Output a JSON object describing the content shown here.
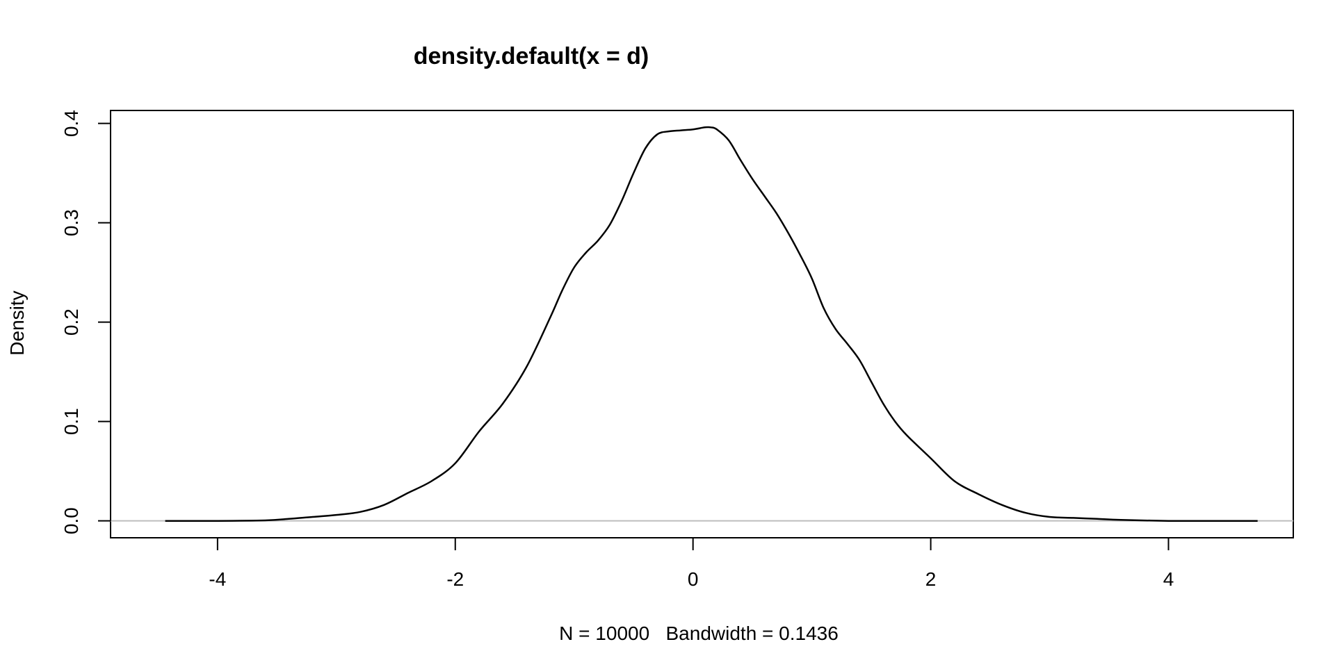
{
  "chart_data": {
    "type": "line",
    "title": "density.default(x = d)",
    "xlabel": "N = 10000   Bandwidth = 0.1436",
    "ylabel": "Density",
    "xlim": [
      -4.9,
      5.05
    ],
    "ylim": [
      -0.017,
      0.413
    ],
    "x_ticks": [
      {
        "value": -4,
        "label": "-4"
      },
      {
        "value": -2,
        "label": "-2"
      },
      {
        "value": 0,
        "label": "0"
      },
      {
        "value": 2,
        "label": "2"
      },
      {
        "value": 4,
        "label": "4"
      }
    ],
    "y_ticks": [
      {
        "value": 0.0,
        "label": "0.0"
      },
      {
        "value": 0.1,
        "label": "0.1"
      },
      {
        "value": 0.2,
        "label": "0.2"
      },
      {
        "value": 0.3,
        "label": "0.3"
      },
      {
        "value": 0.4,
        "label": "0.4"
      }
    ],
    "baseline": 0,
    "grid": false,
    "series": [
      {
        "x": [
          -4.44,
          -4.0,
          -3.6,
          -3.4,
          -3.2,
          -3.0,
          -2.8,
          -2.6,
          -2.4,
          -2.2,
          -2.0,
          -1.8,
          -1.6,
          -1.4,
          -1.2,
          -1.1,
          -1.0,
          -0.9,
          -0.8,
          -0.7,
          -0.6,
          -0.5,
          -0.4,
          -0.3,
          -0.2,
          -0.1,
          0.0,
          0.1,
          0.15,
          0.2,
          0.3,
          0.4,
          0.5,
          0.6,
          0.7,
          0.8,
          0.9,
          1.0,
          1.1,
          1.2,
          1.3,
          1.4,
          1.5,
          1.6,
          1.7,
          1.8,
          2.0,
          2.2,
          2.4,
          2.6,
          2.8,
          3.0,
          3.2,
          3.4,
          3.6,
          4.0,
          4.4,
          4.75
        ],
        "y": [
          0.0,
          0.0,
          0.0005,
          0.002,
          0.004,
          0.006,
          0.009,
          0.016,
          0.028,
          0.04,
          0.058,
          0.09,
          0.118,
          0.155,
          0.205,
          0.232,
          0.255,
          0.27,
          0.282,
          0.298,
          0.322,
          0.35,
          0.375,
          0.389,
          0.392,
          0.393,
          0.394,
          0.396,
          0.396,
          0.394,
          0.383,
          0.363,
          0.344,
          0.327,
          0.31,
          0.29,
          0.268,
          0.244,
          0.214,
          0.193,
          0.178,
          0.162,
          0.14,
          0.118,
          0.1,
          0.086,
          0.063,
          0.04,
          0.027,
          0.016,
          0.008,
          0.004,
          0.003,
          0.002,
          0.001,
          0.0,
          0.0,
          0.0
        ]
      }
    ]
  }
}
